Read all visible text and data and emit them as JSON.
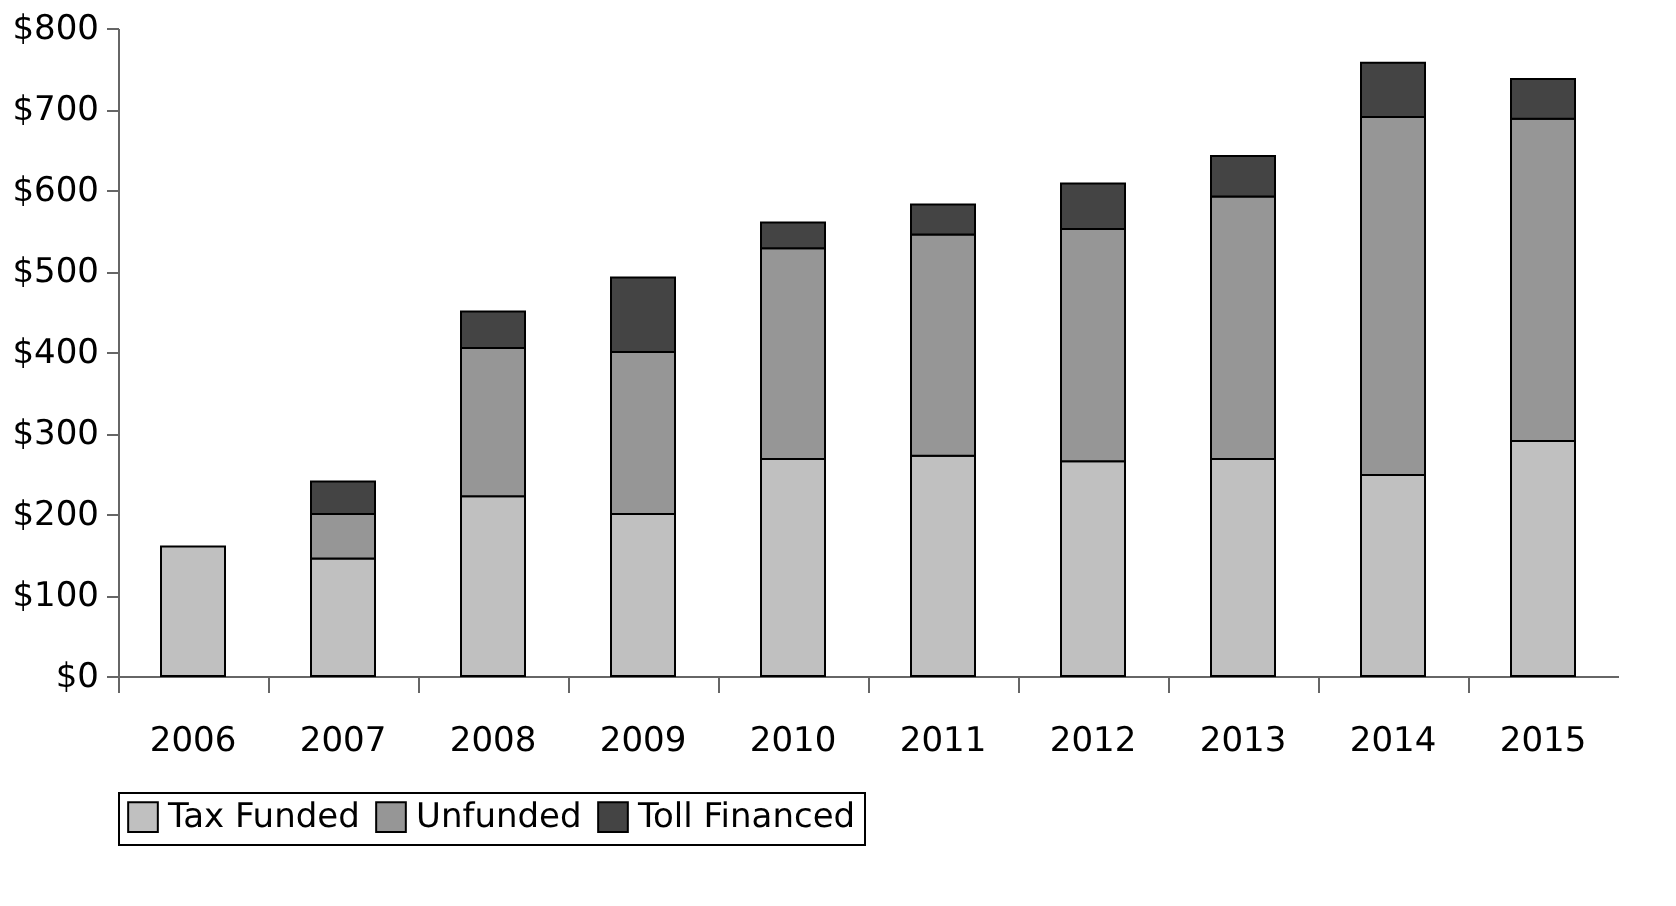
{
  "chart_data": {
    "type": "bar",
    "stacked": true,
    "categories": [
      "2006",
      "2007",
      "2008",
      "2009",
      "2010",
      "2011",
      "2012",
      "2013",
      "2014",
      "2015"
    ],
    "series": [
      {
        "name": "Tax Funded",
        "color": "#c0c0c0",
        "values": [
          160,
          145,
          222,
          200,
          268,
          272,
          265,
          268,
          248,
          290
        ]
      },
      {
        "name": "Unfunded",
        "color": "#969696",
        "values": [
          null,
          55,
          183,
          200,
          260,
          273,
          287,
          324,
          442,
          398
        ]
      },
      {
        "name": "Toll Financed",
        "color": "#444444",
        "values": [
          null,
          40,
          45,
          92,
          32,
          37,
          56,
          50,
          67,
          49
        ]
      }
    ],
    "ylim": [
      0,
      800
    ],
    "yticks": [
      {
        "value": 0,
        "label": "$0"
      },
      {
        "value": 100,
        "label": "$100"
      },
      {
        "value": 200,
        "label": "$200"
      },
      {
        "value": 300,
        "label": "$300"
      },
      {
        "value": 400,
        "label": "$400"
      },
      {
        "value": 500,
        "label": "$500"
      },
      {
        "value": 600,
        "label": "$600"
      },
      {
        "value": 700,
        "label": "$700"
      },
      {
        "value": 800,
        "label": "$800"
      }
    ],
    "grid": false,
    "legend": "bottom"
  }
}
